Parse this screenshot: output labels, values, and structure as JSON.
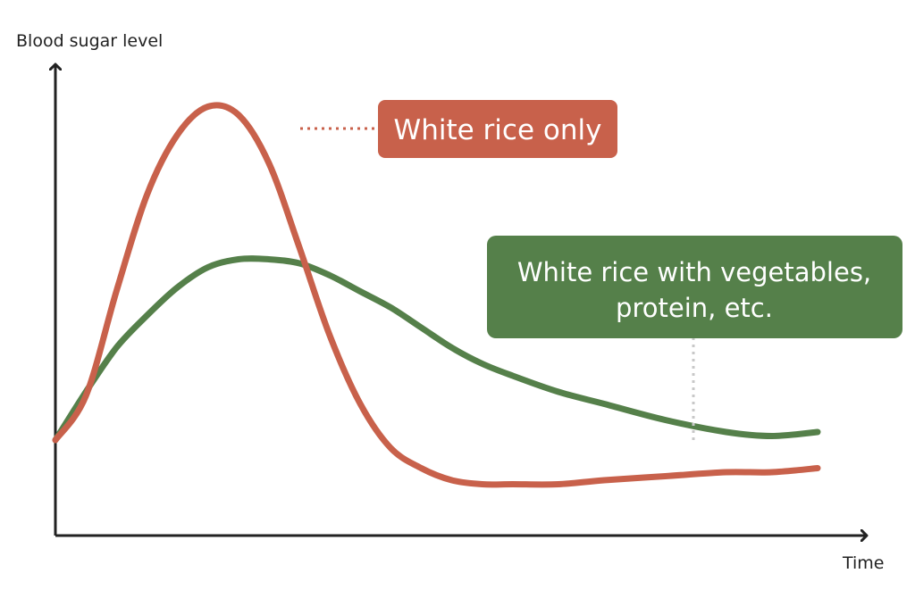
{
  "chart_data": {
    "type": "line",
    "title": "",
    "xlabel": "Time",
    "ylabel": "Blood sugar level",
    "xlim": [
      0,
      100
    ],
    "ylim": [
      0,
      100
    ],
    "grid": false,
    "series": [
      {
        "name": "White rice only",
        "color": "#c8614b",
        "x": [
          0,
          4,
          8,
          12,
          16,
          20,
          24,
          28,
          32,
          36,
          40,
          44,
          48,
          52,
          56,
          60,
          66,
          72,
          80,
          88,
          94,
          100
        ],
        "y": [
          16,
          27,
          53,
          77,
          92,
          99,
          97,
          85,
          64,
          42,
          25,
          14,
          9,
          6,
          5,
          5,
          5,
          6,
          7,
          8,
          8,
          9
        ]
      },
      {
        "name": "White rice with vegetables, protein, etc.",
        "color": "#55804a",
        "x": [
          0,
          4,
          8,
          12,
          16,
          20,
          24,
          28,
          32,
          36,
          40,
          44,
          48,
          52,
          56,
          60,
          66,
          72,
          80,
          88,
          94,
          100
        ],
        "y": [
          16,
          28,
          39,
          47,
          54,
          59,
          61,
          61,
          60,
          57,
          53,
          49,
          44,
          39,
          35,
          32,
          28,
          25,
          21,
          18,
          17,
          18
        ]
      }
    ],
    "annotations": [
      {
        "series": 0,
        "text_lines": [
          "White rice only"
        ]
      },
      {
        "series": 1,
        "text_lines": [
          "White rice with vegetables,",
          "protein, etc."
        ]
      }
    ]
  }
}
